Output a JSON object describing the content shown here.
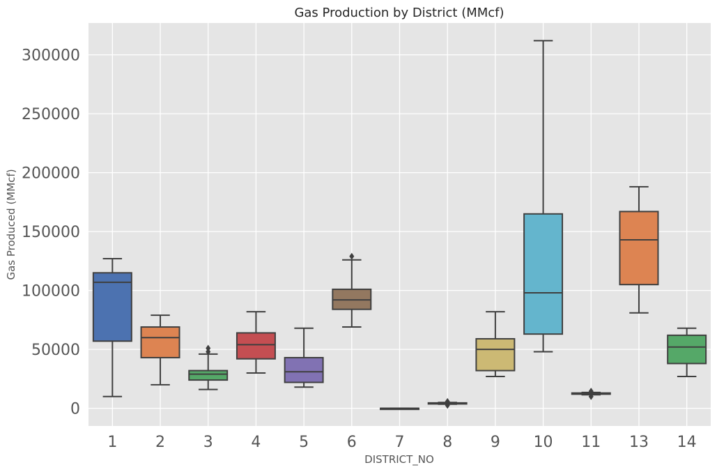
{
  "chart_data": {
    "type": "box",
    "title": "Gas Production by District (MMcf)",
    "xlabel": "DISTRICT_NO",
    "ylabel": "Gas Produced (MMcf)",
    "ylim": [
      -15000,
      327000
    ],
    "yticks": [
      0,
      50000,
      100000,
      150000,
      200000,
      250000,
      300000
    ],
    "grid": true,
    "categories": [
      "1",
      "2",
      "3",
      "4",
      "5",
      "6",
      "7",
      "8",
      "9",
      "10",
      "11",
      "13",
      "14"
    ],
    "boxes": [
      {
        "category": "1",
        "whisker_low": 10000,
        "q1": 57000,
        "median": 107000,
        "q3": 115000,
        "whisker_high": 127000,
        "outliers": [],
        "color": "#4C72B0"
      },
      {
        "category": "2",
        "whisker_low": 20000,
        "q1": 43000,
        "median": 60000,
        "q3": 69000,
        "whisker_high": 79000,
        "outliers": [],
        "color": "#DD8452"
      },
      {
        "category": "3",
        "whisker_low": 16000,
        "q1": 24000,
        "median": 29000,
        "q3": 32000,
        "whisker_high": 46000,
        "outliers": [
          48000,
          51000
        ],
        "color": "#55A868"
      },
      {
        "category": "4",
        "whisker_low": 30000,
        "q1": 42000,
        "median": 54000,
        "q3": 64000,
        "whisker_high": 82000,
        "outliers": [],
        "color": "#C44E52"
      },
      {
        "category": "5",
        "whisker_low": 18000,
        "q1": 22000,
        "median": 31000,
        "q3": 43000,
        "whisker_high": 68000,
        "outliers": [],
        "color": "#8172B3"
      },
      {
        "category": "6",
        "whisker_low": 69000,
        "q1": 84000,
        "median": 92000,
        "q3": 101000,
        "whisker_high": 126000,
        "outliers": [
          129000
        ],
        "color": "#937860"
      },
      {
        "category": "7",
        "whisker_low": 0,
        "q1": 0,
        "median": 0,
        "q3": 0,
        "whisker_high": 0,
        "outliers": [],
        "color": "#DA8BC3"
      },
      {
        "category": "8",
        "whisker_low": 3500,
        "q1": 4000,
        "median": 4200,
        "q3": 4600,
        "whisker_high": 5000,
        "outliers": [
          2500,
          5800
        ],
        "color": "#8C8C8C"
      },
      {
        "category": "9",
        "whisker_low": 27000,
        "q1": 32000,
        "median": 50000,
        "q3": 59000,
        "whisker_high": 82000,
        "outliers": [],
        "color": "#CCB974"
      },
      {
        "category": "10",
        "whisker_low": 48000,
        "q1": 63000,
        "median": 98000,
        "q3": 165000,
        "whisker_high": 312000,
        "outliers": [],
        "color": "#64B5CD"
      },
      {
        "category": "11",
        "whisker_low": 11500,
        "q1": 12000,
        "median": 12500,
        "q3": 13000,
        "whisker_high": 13500,
        "outliers": [
          10000,
          14500
        ],
        "color": "#4C72B0"
      },
      {
        "category": "13",
        "whisker_low": 81000,
        "q1": 105000,
        "median": 143000,
        "q3": 167000,
        "whisker_high": 188000,
        "outliers": [],
        "color": "#DD8452"
      },
      {
        "category": "14",
        "whisker_low": 27000,
        "q1": 38000,
        "median": 52000,
        "q3": 62000,
        "whisker_high": 68000,
        "outliers": [],
        "color": "#55A868"
      }
    ]
  },
  "colors": {
    "plot_background": "#E5E5E5",
    "grid": "#FFFFFF",
    "box_edge": "#3F3F3F"
  }
}
